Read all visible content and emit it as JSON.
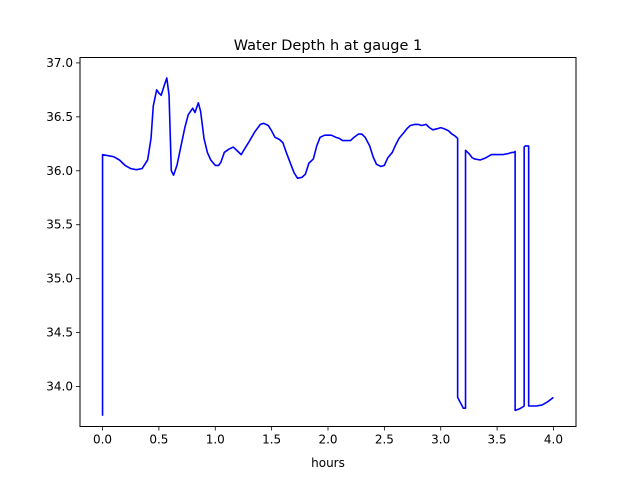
{
  "chart_data": {
    "type": "line",
    "title": "Water Depth h at gauge 1",
    "xlabel": "hours",
    "ylabel": "",
    "xlim": [
      -0.2,
      4.2
    ],
    "ylim": [
      33.63,
      37.05
    ],
    "xticks": [
      0.0,
      0.5,
      1.0,
      1.5,
      2.0,
      2.5,
      3.0,
      3.5,
      4.0
    ],
    "xtick_labels": [
      "0.0",
      "0.5",
      "1.0",
      "1.5",
      "2.0",
      "2.5",
      "3.0",
      "3.5",
      "4.0"
    ],
    "yticks": [
      34.0,
      34.5,
      35.0,
      35.5,
      36.0,
      36.5,
      37.0
    ],
    "ytick_labels": [
      "34.0",
      "34.5",
      "35.0",
      "35.5",
      "36.0",
      "36.5",
      "37.0"
    ],
    "grid": false,
    "series": [
      {
        "color": "#0000ff",
        "x": [
          0.0,
          0.0,
          0.05,
          0.1,
          0.15,
          0.2,
          0.25,
          0.3,
          0.35,
          0.4,
          0.43,
          0.45,
          0.48,
          0.5,
          0.52,
          0.55,
          0.57,
          0.59,
          0.61,
          0.63,
          0.66,
          0.7,
          0.73,
          0.76,
          0.8,
          0.82,
          0.85,
          0.87,
          0.9,
          0.93,
          0.96,
          1.0,
          1.03,
          1.05,
          1.08,
          1.12,
          1.16,
          1.2,
          1.23,
          1.27,
          1.3,
          1.35,
          1.4,
          1.43,
          1.47,
          1.5,
          1.53,
          1.57,
          1.6,
          1.63,
          1.67,
          1.7,
          1.73,
          1.77,
          1.8,
          1.83,
          1.87,
          1.9,
          1.93,
          1.97,
          2.0,
          2.03,
          2.07,
          2.1,
          2.13,
          2.17,
          2.2,
          2.23,
          2.27,
          2.3,
          2.33,
          2.37,
          2.4,
          2.43,
          2.47,
          2.5,
          2.53,
          2.57,
          2.6,
          2.63,
          2.67,
          2.7,
          2.73,
          2.77,
          2.8,
          2.83,
          2.87,
          2.9,
          2.93,
          2.97,
          3.0,
          3.03,
          3.07,
          3.1,
          3.13,
          3.15,
          3.15,
          3.2,
          3.22,
          3.22,
          3.25,
          3.28,
          3.3,
          3.35,
          3.4,
          3.45,
          3.5,
          3.55,
          3.6,
          3.63,
          3.65,
          3.66,
          3.66,
          3.69,
          3.71,
          3.74,
          3.74,
          3.75,
          3.75,
          3.78,
          3.78,
          3.79,
          3.8,
          3.85,
          3.9,
          3.95,
          4.0
        ],
        "y": [
          33.73,
          36.15,
          36.14,
          36.13,
          36.1,
          36.05,
          36.02,
          36.01,
          36.02,
          36.1,
          36.3,
          36.6,
          36.75,
          36.72,
          36.7,
          36.8,
          36.86,
          36.7,
          36.0,
          35.96,
          36.05,
          36.25,
          36.4,
          36.52,
          36.58,
          36.54,
          36.63,
          36.55,
          36.3,
          36.17,
          36.1,
          36.05,
          36.05,
          36.08,
          36.17,
          36.2,
          36.22,
          36.18,
          36.15,
          36.22,
          36.27,
          36.36,
          36.43,
          36.44,
          36.42,
          36.37,
          36.31,
          36.29,
          36.26,
          36.17,
          36.06,
          35.98,
          35.93,
          35.94,
          35.97,
          36.07,
          36.11,
          36.23,
          36.31,
          36.33,
          36.33,
          36.33,
          36.31,
          36.3,
          36.28,
          36.28,
          36.28,
          36.31,
          36.34,
          36.34,
          36.31,
          36.23,
          36.13,
          36.06,
          36.04,
          36.05,
          36.12,
          36.17,
          36.24,
          36.3,
          36.35,
          36.39,
          36.42,
          36.43,
          36.43,
          36.42,
          36.43,
          36.4,
          36.38,
          36.39,
          36.4,
          36.39,
          36.37,
          36.34,
          36.32,
          36.3,
          33.9,
          33.8,
          33.8,
          36.19,
          36.16,
          36.12,
          36.11,
          36.1,
          36.12,
          36.15,
          36.15,
          36.15,
          36.16,
          36.17,
          36.17,
          36.18,
          33.78,
          33.79,
          33.8,
          33.82,
          36.22,
          36.23,
          36.23,
          36.23,
          33.82,
          33.82,
          33.82,
          33.82,
          33.83,
          33.86,
          33.9
        ]
      }
    ]
  }
}
